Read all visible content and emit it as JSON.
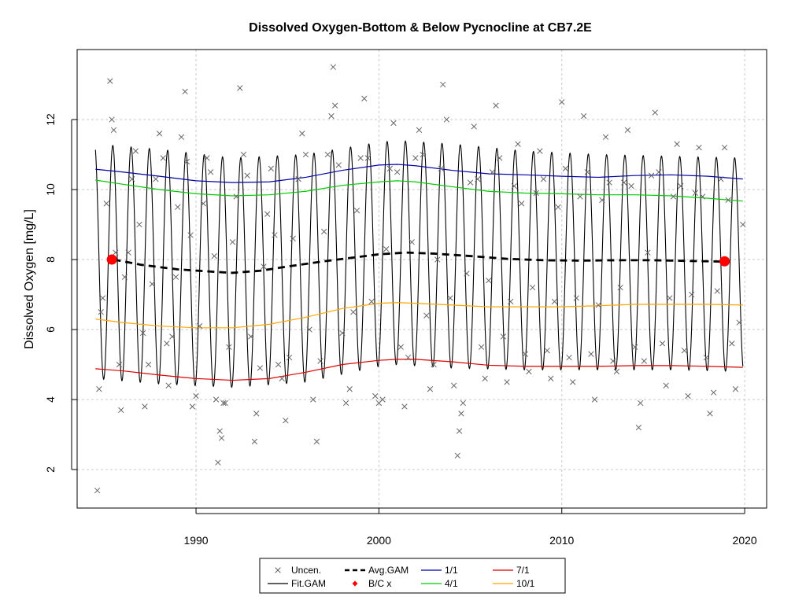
{
  "chart_data": {
    "type": "line",
    "title": "Dissolved Oxygen-Bottom & Below Pycnocline at CB7.2E",
    "xlabel": "",
    "ylabel": "Dissolved Oxygen [mg/L]",
    "xlim": [
      1983.5,
      2021.2
    ],
    "ylim": [
      0.9,
      14.0
    ],
    "x_ticks": [
      1990,
      2000,
      2010,
      2020
    ],
    "y_ticks": [
      2,
      4,
      6,
      8,
      10,
      12
    ],
    "grid": true,
    "legend_position": "bottom-center",
    "legend": [
      {
        "label": "Uncen.",
        "marker": "x",
        "color": "#555555"
      },
      {
        "label": "Fit.GAM",
        "marker": "line",
        "color": "#000000"
      },
      {
        "label": "Avg.GAM",
        "marker": "dashed",
        "color": "#000000"
      },
      {
        "label": "B/C x",
        "marker": "diamond",
        "color": "#ff0000"
      },
      {
        "label": "1/1",
        "marker": "line",
        "color": "#0000aa"
      },
      {
        "label": "4/1",
        "marker": "line",
        "color": "#00cc00"
      },
      {
        "label": "7/1",
        "marker": "line",
        "color": "#dd0000"
      },
      {
        "label": "10/1",
        "marker": "line",
        "color": "#ffa500"
      }
    ],
    "series": [
      {
        "name": "1/1",
        "color": "#0000aa",
        "x": [
          1984.5,
          1986,
          1988,
          1990,
          1992,
          1994,
          1996,
          1998,
          2000,
          2001,
          2002,
          2004,
          2006,
          2008,
          2010,
          2012,
          2014,
          2016,
          2018,
          2019.9
        ],
        "y": [
          10.58,
          10.5,
          10.38,
          10.25,
          10.2,
          10.22,
          10.35,
          10.55,
          10.7,
          10.72,
          10.68,
          10.55,
          10.45,
          10.42,
          10.38,
          10.35,
          10.4,
          10.42,
          10.38,
          10.3
        ]
      },
      {
        "name": "4/1",
        "color": "#00cc00",
        "x": [
          1984.5,
          1986,
          1988,
          1990,
          1992,
          1994,
          1996,
          1998,
          2000,
          2001,
          2002,
          2004,
          2006,
          2008,
          2010,
          2012,
          2014,
          2016,
          2018,
          2019.9
        ],
        "y": [
          10.27,
          10.15,
          10.0,
          9.88,
          9.82,
          9.85,
          9.95,
          10.12,
          10.22,
          10.25,
          10.22,
          10.08,
          9.95,
          9.9,
          9.88,
          9.85,
          9.85,
          9.82,
          9.75,
          9.67
        ]
      },
      {
        "name": "7/1",
        "color": "#dd0000",
        "x": [
          1984.5,
          1986,
          1988,
          1990,
          1992,
          1994,
          1996,
          1998,
          2000,
          2001,
          2002,
          2004,
          2006,
          2008,
          2010,
          2012,
          2014,
          2016,
          2018,
          2019.9
        ],
        "y": [
          4.88,
          4.82,
          4.7,
          4.6,
          4.55,
          4.6,
          4.78,
          5.0,
          5.12,
          5.15,
          5.15,
          5.08,
          4.98,
          4.95,
          4.95,
          4.95,
          4.97,
          4.97,
          4.95,
          4.92
        ]
      },
      {
        "name": "10/1",
        "color": "#ffa500",
        "x": [
          1984.5,
          1986,
          1988,
          1990,
          1992,
          1994,
          1996,
          1998,
          2000,
          2001,
          2002,
          2004,
          2006,
          2008,
          2010,
          2012,
          2014,
          2016,
          2018,
          2019.9
        ],
        "y": [
          6.3,
          6.2,
          6.1,
          6.05,
          6.05,
          6.15,
          6.35,
          6.6,
          6.75,
          6.77,
          6.75,
          6.7,
          6.65,
          6.65,
          6.65,
          6.68,
          6.72,
          6.72,
          6.72,
          6.7
        ]
      },
      {
        "name": "Avg.GAM",
        "color": "#000000",
        "dash": true,
        "x": [
          1985.5,
          1987,
          1989,
          1991,
          1992,
          1993.5,
          1995,
          1997,
          1998.5,
          2000,
          2001.5,
          2003,
          2005,
          2007,
          2009,
          2011,
          2013,
          2015,
          2017,
          2018.9
        ],
        "y": [
          8.0,
          7.85,
          7.72,
          7.65,
          7.62,
          7.68,
          7.8,
          7.95,
          8.05,
          8.15,
          8.2,
          8.17,
          8.1,
          8.02,
          7.98,
          7.97,
          7.98,
          7.98,
          7.96,
          7.94
        ]
      },
      {
        "name": "Fit.GAM",
        "color": "#000000",
        "x_start": 1984.5,
        "x_end": 2019.9,
        "upper_x": [
          1984.5,
          1988,
          1992,
          1996,
          2000,
          2001,
          2004,
          2008,
          2012,
          2016,
          2019.9
        ],
        "upper_y": [
          11.3,
          11.15,
          10.9,
          11.0,
          11.35,
          11.4,
          11.3,
          11.1,
          11.0,
          10.95,
          10.9
        ],
        "lower_x": [
          1984.5,
          1988,
          1992,
          1996,
          2000,
          2001,
          2004,
          2008,
          2012,
          2016,
          2019.9
        ],
        "lower_y": [
          4.6,
          4.45,
          4.35,
          4.5,
          4.95,
          5.0,
          4.9,
          4.85,
          4.85,
          4.85,
          4.8
        ]
      }
    ],
    "bc_points": [
      {
        "x": 1985.4,
        "y": 8.0
      },
      {
        "x": 2018.9,
        "y": 7.95
      }
    ],
    "scatter_uncen": [
      [
        1984.6,
        1.4
      ],
      [
        1984.7,
        4.3
      ],
      [
        1984.8,
        6.5
      ],
      [
        1984.9,
        6.9
      ],
      [
        1985.1,
        9.6
      ],
      [
        1985.3,
        13.1
      ],
      [
        1985.4,
        12.0
      ],
      [
        1985.5,
        11.7
      ],
      [
        1985.6,
        8.2
      ],
      [
        1985.8,
        5.0
      ],
      [
        1985.9,
        3.7
      ],
      [
        1986.1,
        7.5
      ],
      [
        1986.3,
        8.2
      ],
      [
        1986.5,
        10.3
      ],
      [
        1986.7,
        11.1
      ],
      [
        1986.9,
        9.0
      ],
      [
        1987.1,
        5.9
      ],
      [
        1987.2,
        3.8
      ],
      [
        1987.4,
        5.0
      ],
      [
        1987.6,
        7.3
      ],
      [
        1987.8,
        10.3
      ],
      [
        1988.0,
        11.6
      ],
      [
        1988.2,
        10.9
      ],
      [
        1988.4,
        5.6
      ],
      [
        1988.5,
        4.4
      ],
      [
        1988.7,
        5.8
      ],
      [
        1988.9,
        7.5
      ],
      [
        1989.0,
        9.5
      ],
      [
        1989.2,
        11.5
      ],
      [
        1989.4,
        12.8
      ],
      [
        1989.5,
        10.8
      ],
      [
        1989.7,
        8.7
      ],
      [
        1989.8,
        3.8
      ],
      [
        1990.0,
        4.1
      ],
      [
        1990.2,
        6.1
      ],
      [
        1990.4,
        9.6
      ],
      [
        1990.6,
        10.9
      ],
      [
        1990.8,
        10.5
      ],
      [
        1991.0,
        8.1
      ],
      [
        1991.1,
        4.0
      ],
      [
        1991.2,
        2.2
      ],
      [
        1991.3,
        3.1
      ],
      [
        1991.4,
        2.9
      ],
      [
        1991.5,
        3.9
      ],
      [
        1991.6,
        3.9
      ],
      [
        1991.8,
        5.5
      ],
      [
        1992.0,
        8.5
      ],
      [
        1992.2,
        9.8
      ],
      [
        1992.4,
        12.9
      ],
      [
        1992.6,
        11.0
      ],
      [
        1992.8,
        10.4
      ],
      [
        1993.0,
        5.8
      ],
      [
        1993.2,
        2.8
      ],
      [
        1993.3,
        3.6
      ],
      [
        1993.5,
        4.9
      ],
      [
        1993.7,
        7.8
      ],
      [
        1993.9,
        9.3
      ],
      [
        1994.1,
        10.6
      ],
      [
        1994.3,
        8.7
      ],
      [
        1994.5,
        5.0
      ],
      [
        1994.7,
        4.6
      ],
      [
        1994.9,
        3.4
      ],
      [
        1995.1,
        5.2
      ],
      [
        1995.3,
        8.6
      ],
      [
        1995.6,
        10.3
      ],
      [
        1995.8,
        11.6
      ],
      [
        1996.0,
        11.0
      ],
      [
        1996.2,
        6.0
      ],
      [
        1996.4,
        4.0
      ],
      [
        1996.6,
        2.8
      ],
      [
        1996.8,
        5.1
      ],
      [
        1997.0,
        8.8
      ],
      [
        1997.2,
        11.0
      ],
      [
        1997.4,
        12.1
      ],
      [
        1997.5,
        13.5
      ],
      [
        1997.6,
        12.4
      ],
      [
        1997.8,
        10.7
      ],
      [
        1998.0,
        5.9
      ],
      [
        1998.2,
        3.9
      ],
      [
        1998.4,
        4.3
      ],
      [
        1998.6,
        6.5
      ],
      [
        1998.8,
        9.4
      ],
      [
        1999.0,
        10.9
      ],
      [
        1999.2,
        12.6
      ],
      [
        1999.4,
        10.9
      ],
      [
        1999.6,
        6.8
      ],
      [
        1999.8,
        4.1
      ],
      [
        2000.0,
        3.9
      ],
      [
        2000.2,
        4.0
      ],
      [
        2000.4,
        8.3
      ],
      [
        2000.6,
        10.6
      ],
      [
        2000.8,
        11.9
      ],
      [
        2001.0,
        10.5
      ],
      [
        2001.2,
        5.5
      ],
      [
        2001.4,
        3.8
      ],
      [
        2001.6,
        5.2
      ],
      [
        2001.8,
        8.5
      ],
      [
        2002.0,
        10.9
      ],
      [
        2002.2,
        11.7
      ],
      [
        2002.4,
        11.0
      ],
      [
        2002.6,
        6.4
      ],
      [
        2002.8,
        4.3
      ],
      [
        2003.0,
        5.0
      ],
      [
        2003.2,
        8.0
      ],
      [
        2003.4,
        10.6
      ],
      [
        2003.5,
        13.0
      ],
      [
        2003.7,
        12.0
      ],
      [
        2003.9,
        6.9
      ],
      [
        2004.1,
        4.4
      ],
      [
        2004.3,
        2.4
      ],
      [
        2004.4,
        3.1
      ],
      [
        2004.5,
        3.6
      ],
      [
        2004.6,
        3.9
      ],
      [
        2004.8,
        7.6
      ],
      [
        2005.0,
        10.2
      ],
      [
        2005.2,
        11.8
      ],
      [
        2005.4,
        10.3
      ],
      [
        2005.6,
        5.5
      ],
      [
        2005.8,
        4.6
      ],
      [
        2006.0,
        7.4
      ],
      [
        2006.2,
        10.5
      ],
      [
        2006.4,
        12.4
      ],
      [
        2006.6,
        10.9
      ],
      [
        2006.8,
        5.8
      ],
      [
        2007.0,
        4.5
      ],
      [
        2007.2,
        6.8
      ],
      [
        2007.4,
        10.1
      ],
      [
        2007.6,
        11.3
      ],
      [
        2007.8,
        9.6
      ],
      [
        2008.0,
        5.3
      ],
      [
        2008.2,
        4.8
      ],
      [
        2008.4,
        7.2
      ],
      [
        2008.6,
        9.9
      ],
      [
        2008.8,
        11.1
      ],
      [
        2009.0,
        10.3
      ],
      [
        2009.2,
        5.4
      ],
      [
        2009.4,
        4.6
      ],
      [
        2009.6,
        6.8
      ],
      [
        2009.8,
        9.5
      ],
      [
        2010.0,
        12.5
      ],
      [
        2010.2,
        10.6
      ],
      [
        2010.4,
        5.2
      ],
      [
        2010.6,
        4.5
      ],
      [
        2010.8,
        6.9
      ],
      [
        2011.0,
        9.8
      ],
      [
        2011.2,
        12.1
      ],
      [
        2011.4,
        10.5
      ],
      [
        2011.6,
        5.3
      ],
      [
        2011.8,
        4.0
      ],
      [
        2012.0,
        6.7
      ],
      [
        2012.2,
        9.7
      ],
      [
        2012.4,
        11.5
      ],
      [
        2012.6,
        10.2
      ],
      [
        2012.8,
        5.1
      ],
      [
        2013.0,
        4.8
      ],
      [
        2013.2,
        7.2
      ],
      [
        2013.4,
        10.2
      ],
      [
        2013.6,
        11.7
      ],
      [
        2013.8,
        10.1
      ],
      [
        2014.0,
        5.5
      ],
      [
        2014.2,
        3.2
      ],
      [
        2014.3,
        3.9
      ],
      [
        2014.5,
        5.1
      ],
      [
        2014.7,
        8.2
      ],
      [
        2014.9,
        10.4
      ],
      [
        2015.1,
        12.2
      ],
      [
        2015.3,
        10.5
      ],
      [
        2015.5,
        5.6
      ],
      [
        2015.7,
        4.4
      ],
      [
        2015.9,
        6.9
      ],
      [
        2016.1,
        9.8
      ],
      [
        2016.3,
        11.3
      ],
      [
        2016.5,
        10.1
      ],
      [
        2016.7,
        5.4
      ],
      [
        2016.9,
        4.1
      ],
      [
        2017.1,
        7.0
      ],
      [
        2017.3,
        9.9
      ],
      [
        2017.5,
        11.2
      ],
      [
        2017.7,
        9.8
      ],
      [
        2017.9,
        5.2
      ],
      [
        2018.1,
        3.6
      ],
      [
        2018.3,
        4.2
      ],
      [
        2018.5,
        7.1
      ],
      [
        2018.7,
        10.3
      ],
      [
        2018.9,
        11.2
      ],
      [
        2019.1,
        9.7
      ],
      [
        2019.3,
        5.6
      ],
      [
        2019.5,
        4.3
      ],
      [
        2019.7,
        6.2
      ],
      [
        2019.9,
        9.0
      ]
    ]
  }
}
